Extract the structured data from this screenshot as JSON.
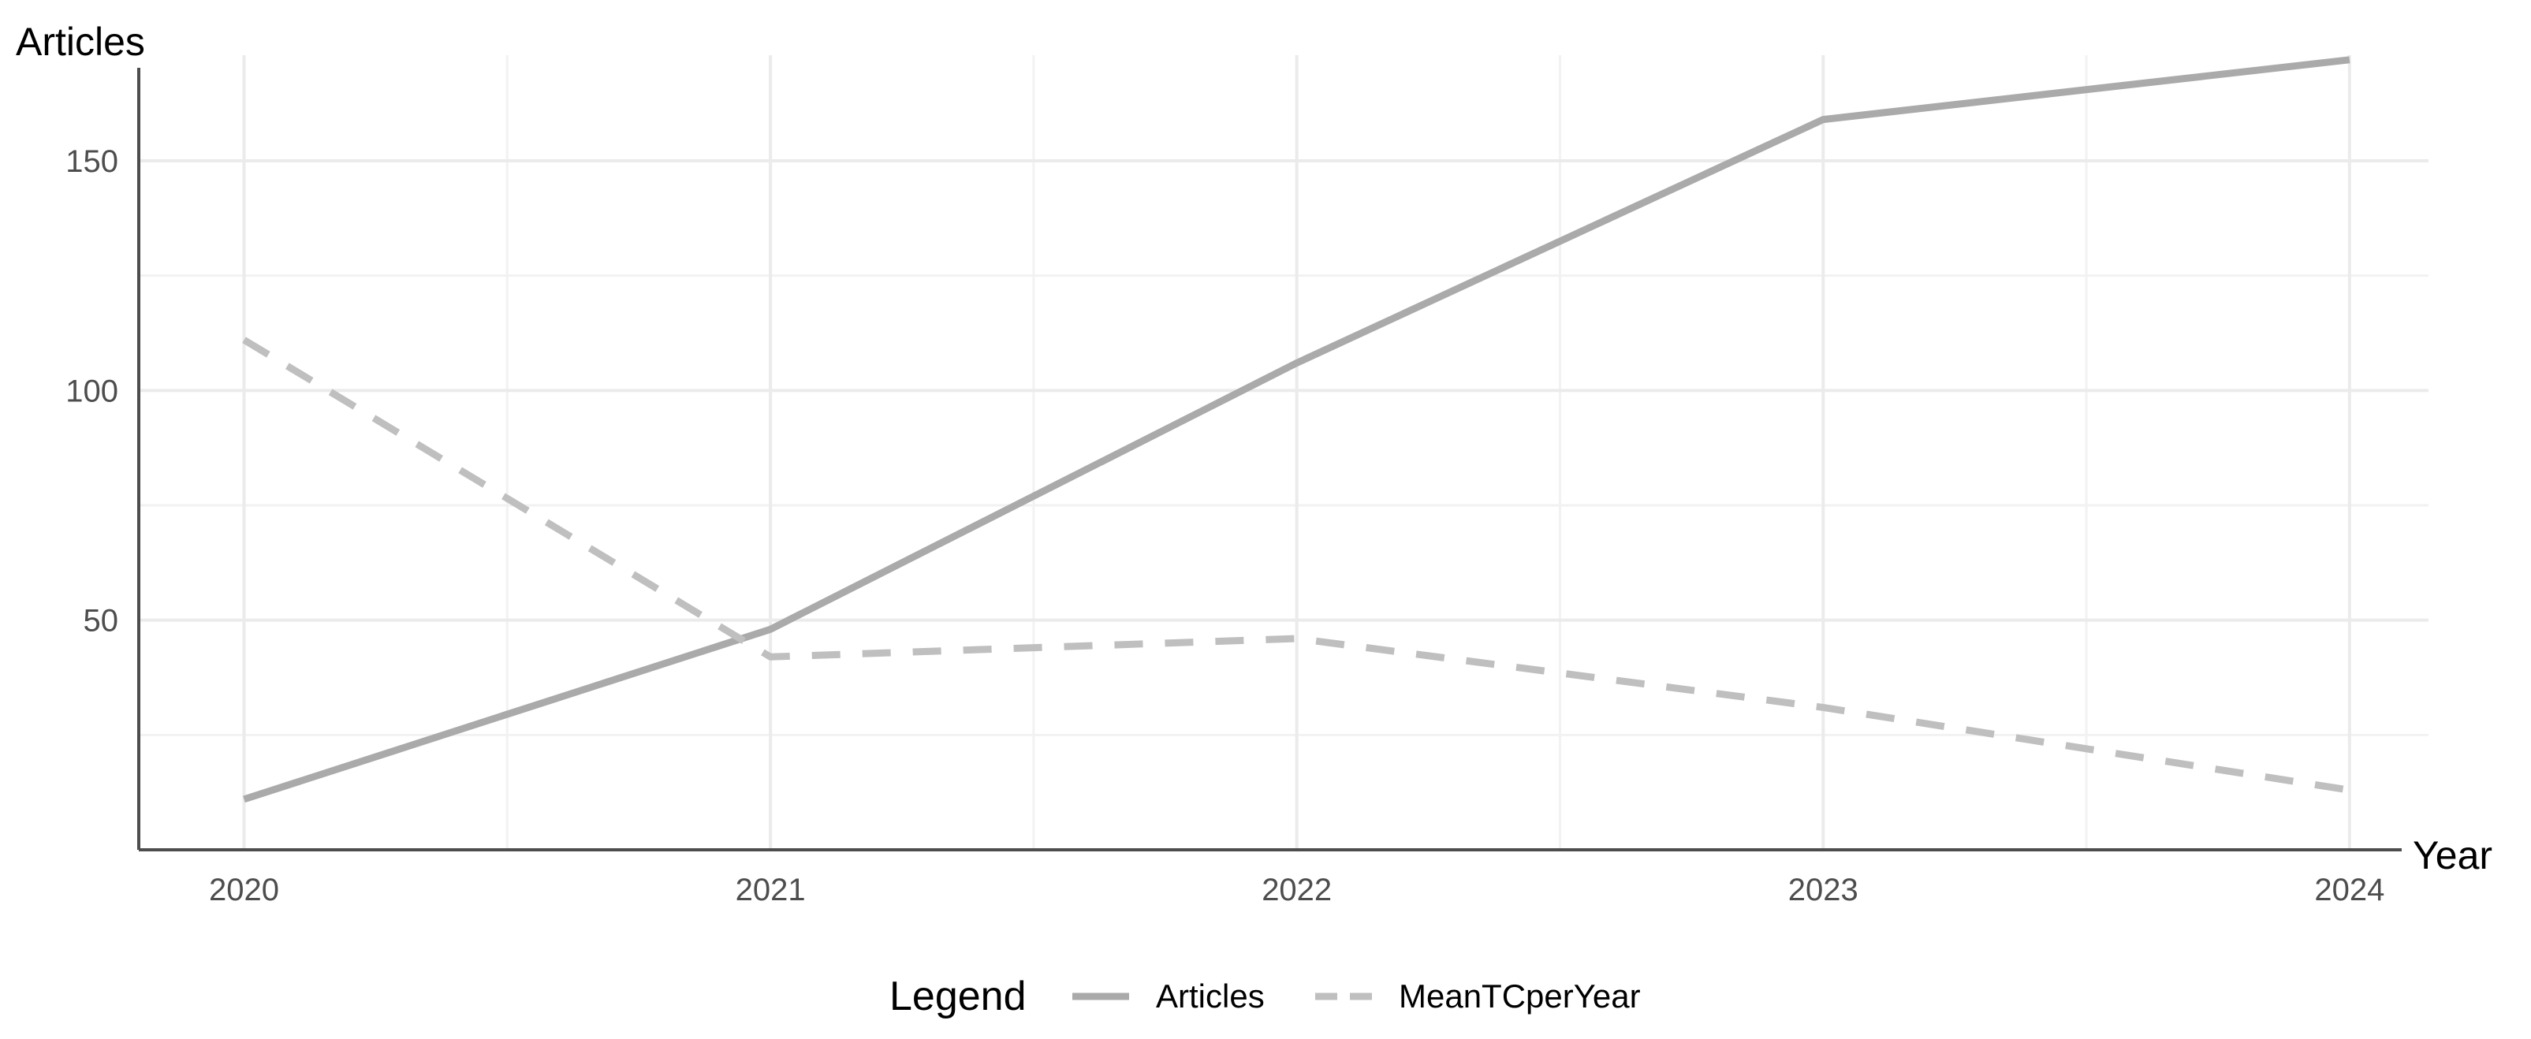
{
  "chart_data": {
    "type": "line",
    "x": [
      2020,
      2021,
      2022,
      2023,
      2024
    ],
    "xlabel": "Year",
    "ylabel": "Articles",
    "x_tick_labels": [
      "2020",
      "2021",
      "2022",
      "2023",
      "2024"
    ],
    "y_tick_labels": [
      "50",
      "100",
      "150"
    ],
    "y_ticks": [
      50,
      100,
      150
    ],
    "xlim": [
      2019.8,
      2024.15
    ],
    "ylim": [
      0,
      173
    ],
    "grid": true,
    "legend": {
      "title": "Legend",
      "position": "bottom"
    },
    "series": [
      {
        "name": "Articles",
        "values": [
          11,
          48,
          106,
          159,
          172
        ],
        "color": "#aaaaaa",
        "style": "solid"
      },
      {
        "name": "MeanTCperYear",
        "values": [
          111,
          42,
          46,
          31,
          13
        ],
        "color": "#bfbfbf",
        "style": "dashed"
      }
    ]
  }
}
